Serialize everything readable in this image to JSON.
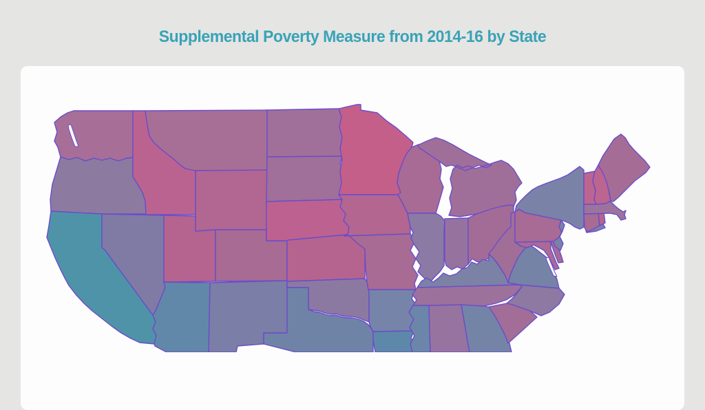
{
  "title": "Supplemental Poverty Measure from 2014-16 by State",
  "colors": {
    "background": "#e5e5e4",
    "card": "#fdfdfd",
    "title": "#39a3b6",
    "state_border": "#6a4dc9",
    "water": "#fdfdfd"
  },
  "map": {
    "description": "US choropleth map, diverging teal-to-pink fills by state",
    "states": [
      {
        "id": "wa",
        "name": "Washington",
        "fill": "#a76f97"
      },
      {
        "id": "or",
        "name": "Oregon",
        "fill": "#8d7aa1"
      },
      {
        "id": "ca",
        "name": "California",
        "fill": "#4f93a9"
      },
      {
        "id": "nv",
        "name": "Nevada",
        "fill": "#7f7ba5"
      },
      {
        "id": "id",
        "name": "Idaho",
        "fill": "#bb6390"
      },
      {
        "id": "mt",
        "name": "Montana",
        "fill": "#a76f96"
      },
      {
        "id": "wy",
        "name": "Wyoming",
        "fill": "#b16791"
      },
      {
        "id": "ut",
        "name": "Utah",
        "fill": "#b4648f"
      },
      {
        "id": "co",
        "name": "Colorado",
        "fill": "#a76b94"
      },
      {
        "id": "az",
        "name": "Arizona",
        "fill": "#6288a9"
      },
      {
        "id": "nm",
        "name": "New Mexico",
        "fill": "#7b7ea6"
      },
      {
        "id": "nd",
        "name": "North Dakota",
        "fill": "#a1709a"
      },
      {
        "id": "sd",
        "name": "South Dakota",
        "fill": "#a06f9a"
      },
      {
        "id": "ne",
        "name": "Nebraska",
        "fill": "#bd6290"
      },
      {
        "id": "ks",
        "name": "Kansas",
        "fill": "#b5648f"
      },
      {
        "id": "ok",
        "name": "Oklahoma",
        "fill": "#8c79a2"
      },
      {
        "id": "tx",
        "name": "Texas",
        "fill": "#6f83a7"
      },
      {
        "id": "mn",
        "name": "Minnesota",
        "fill": "#c45f8a"
      },
      {
        "id": "ia",
        "name": "Iowa",
        "fill": "#b26690"
      },
      {
        "id": "mo",
        "name": "Missouri",
        "fill": "#a86b94"
      },
      {
        "id": "ar",
        "name": "Arkansas",
        "fill": "#7584a8"
      },
      {
        "id": "la",
        "name": "Louisiana",
        "fill": "#5d88a9"
      },
      {
        "id": "wi",
        "name": "Wisconsin",
        "fill": "#a86b95"
      },
      {
        "id": "il",
        "name": "Illinois",
        "fill": "#8b7aa3"
      },
      {
        "id": "mi",
        "name": "Michigan",
        "fill": "#a06f99"
      },
      {
        "id": "in",
        "name": "Indiana",
        "fill": "#96739f"
      },
      {
        "id": "oh",
        "name": "Ohio",
        "fill": "#a26c97"
      },
      {
        "id": "ky",
        "name": "Kentucky",
        "fill": "#7b82a6"
      },
      {
        "id": "tn",
        "name": "Tennessee",
        "fill": "#9c729c"
      },
      {
        "id": "ms",
        "name": "Mississippi",
        "fill": "#6b86a8"
      },
      {
        "id": "al",
        "name": "Alabama",
        "fill": "#96749f"
      },
      {
        "id": "ga",
        "name": "Georgia",
        "fill": "#7484a7"
      },
      {
        "id": "sc",
        "name": "South Carolina",
        "fill": "#a26e97"
      },
      {
        "id": "nc",
        "name": "North Carolina",
        "fill": "#8d79a1"
      },
      {
        "id": "va",
        "name": "Virginia",
        "fill": "#7583a7"
      },
      {
        "id": "wv",
        "name": "West Virginia",
        "fill": "#a16e98"
      },
      {
        "id": "md",
        "name": "Maryland",
        "fill": "#aa6a95"
      },
      {
        "id": "de",
        "name": "Delaware",
        "fill": "#a56b97"
      },
      {
        "id": "nj",
        "name": "New Jersey",
        "fill": "#7b81a7"
      },
      {
        "id": "pa",
        "name": "Pennsylvania",
        "fill": "#a76b95"
      },
      {
        "id": "ny",
        "name": "New York",
        "fill": "#7b82a8"
      },
      {
        "id": "ct",
        "name": "Connecticut",
        "fill": "#a76b94"
      },
      {
        "id": "ri",
        "name": "Rhode Island",
        "fill": "#b4648f"
      },
      {
        "id": "ma",
        "name": "Massachusetts",
        "fill": "#9c739c"
      },
      {
        "id": "vt",
        "name": "Vermont",
        "fill": "#bb6590"
      },
      {
        "id": "nh",
        "name": "New Hampshire",
        "fill": "#bb6590"
      },
      {
        "id": "me",
        "name": "Maine",
        "fill": "#a56c96"
      }
    ]
  }
}
